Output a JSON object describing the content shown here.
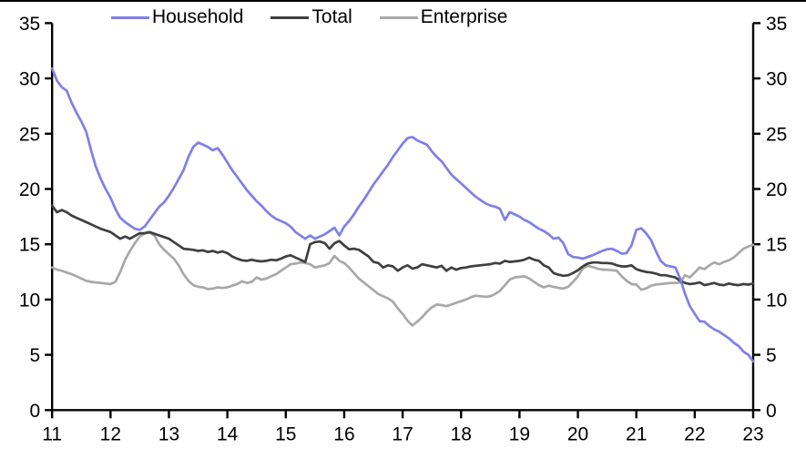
{
  "page": {
    "background": "#ffffff",
    "top_border_color": "#000000"
  },
  "legend": [
    {
      "label": "Household",
      "color": "#7f7fe8"
    },
    {
      "label": "Total",
      "color": "#3f3f3f"
    },
    {
      "label": "Enterprise",
      "color": "#a8a8a8"
    }
  ],
  "chart_data": {
    "type": "line",
    "title": "",
    "xlabel": "",
    "ylabel": "",
    "grid": false,
    "legend_position": "top",
    "x_axis": {
      "min": 11,
      "max": 23,
      "tick_labels": [
        "11",
        "12",
        "13",
        "14",
        "15",
        "16",
        "17",
        "18",
        "19",
        "20",
        "21",
        "22",
        "23"
      ]
    },
    "y_axis": {
      "min": 0,
      "max": 35,
      "tick_step": 5,
      "tick_labels": [
        "0",
        "5",
        "10",
        "15",
        "20",
        "25",
        "30",
        "35"
      ],
      "sides": "both"
    },
    "x_start_year": 11,
    "x_step_years": 0.08333,
    "series": [
      {
        "name": "Enterprise",
        "color": "#a8a8a8",
        "values": [
          12.9,
          12.7,
          12.6,
          12.45,
          12.3,
          12.1,
          11.9,
          11.7,
          11.6,
          11.55,
          11.5,
          11.45,
          11.4,
          11.6,
          12.5,
          13.6,
          14.4,
          15.1,
          15.7,
          16.0,
          16.05,
          15.8,
          15.0,
          14.5,
          14.1,
          13.7,
          13.1,
          12.3,
          11.7,
          11.3,
          11.15,
          11.1,
          10.95,
          11.0,
          11.1,
          11.05,
          11.1,
          11.25,
          11.4,
          11.65,
          11.5,
          11.6,
          12.0,
          11.8,
          11.9,
          12.1,
          12.3,
          12.6,
          12.9,
          13.2,
          13.25,
          13.35,
          13.3,
          13.2,
          12.9,
          13.0,
          13.1,
          13.3,
          13.95,
          13.5,
          13.3,
          12.9,
          12.4,
          11.9,
          11.55,
          11.2,
          10.85,
          10.5,
          10.3,
          10.1,
          9.8,
          9.2,
          8.7,
          8.1,
          7.65,
          8.0,
          8.4,
          8.9,
          9.3,
          9.55,
          9.5,
          9.4,
          9.55,
          9.7,
          9.85,
          10.0,
          10.2,
          10.35,
          10.3,
          10.25,
          10.3,
          10.5,
          10.8,
          11.3,
          11.8,
          12.0,
          12.05,
          12.1,
          11.9,
          11.6,
          11.3,
          11.1,
          11.25,
          11.15,
          11.05,
          11.0,
          11.15,
          11.6,
          12.1,
          12.8,
          13.05,
          12.95,
          12.8,
          12.7,
          12.7,
          12.65,
          12.6,
          12.1,
          11.7,
          11.4,
          11.35,
          10.9,
          11.0,
          11.25,
          11.35,
          11.4,
          11.45,
          11.5,
          11.5,
          11.55,
          12.2,
          12.0,
          12.45,
          12.9,
          12.75,
          13.1,
          13.35,
          13.2,
          13.4,
          13.55,
          13.8,
          14.2,
          14.6,
          14.8,
          14.95
        ]
      },
      {
        "name": "Total",
        "color": "#3f3f3f",
        "values": [
          18.5,
          17.9,
          18.1,
          17.9,
          17.6,
          17.4,
          17.2,
          17.0,
          16.8,
          16.6,
          16.4,
          16.25,
          16.1,
          15.8,
          15.5,
          15.7,
          15.5,
          15.75,
          16.0,
          16.0,
          16.1,
          15.95,
          15.8,
          15.65,
          15.5,
          15.2,
          14.9,
          14.6,
          14.55,
          14.5,
          14.4,
          14.45,
          14.3,
          14.4,
          14.25,
          14.35,
          14.2,
          13.9,
          13.7,
          13.55,
          13.5,
          13.6,
          13.5,
          13.45,
          13.5,
          13.6,
          13.55,
          13.7,
          13.9,
          14.0,
          13.8,
          13.6,
          13.4,
          15.0,
          15.2,
          15.25,
          15.1,
          14.6,
          15.1,
          15.3,
          14.9,
          14.55,
          14.6,
          14.5,
          14.2,
          13.9,
          13.4,
          13.3,
          12.9,
          13.1,
          13.0,
          12.6,
          12.9,
          13.1,
          12.8,
          12.9,
          13.2,
          13.1,
          13.0,
          12.9,
          13.05,
          12.6,
          12.9,
          12.7,
          12.85,
          12.9,
          13.0,
          13.05,
          13.1,
          13.15,
          13.2,
          13.3,
          13.25,
          13.5,
          13.4,
          13.45,
          13.5,
          13.6,
          13.8,
          13.6,
          13.5,
          13.1,
          12.9,
          12.4,
          12.25,
          12.15,
          12.2,
          12.4,
          12.65,
          13.0,
          13.25,
          13.35,
          13.35,
          13.3,
          13.3,
          13.25,
          13.1,
          13.0,
          13.0,
          13.1,
          12.75,
          12.6,
          12.5,
          12.45,
          12.35,
          12.2,
          12.2,
          12.1,
          12.0,
          11.7,
          11.5,
          11.4,
          11.45,
          11.55,
          11.3,
          11.4,
          11.5,
          11.35,
          11.3,
          11.45,
          11.35,
          11.3,
          11.4,
          11.35,
          11.45
        ]
      },
      {
        "name": "Household",
        "color": "#7f7fe8",
        "values": [
          30.9,
          29.8,
          29.2,
          28.9,
          27.8,
          26.9,
          26.1,
          25.2,
          23.5,
          22.0,
          20.9,
          20.0,
          19.2,
          18.2,
          17.4,
          17.0,
          16.7,
          16.4,
          16.3,
          16.6,
          17.2,
          17.8,
          18.4,
          18.8,
          19.4,
          20.1,
          20.9,
          21.7,
          22.9,
          23.8,
          24.2,
          24.0,
          23.8,
          23.5,
          23.7,
          23.1,
          22.4,
          21.7,
          21.1,
          20.5,
          19.9,
          19.4,
          18.9,
          18.5,
          18.0,
          17.6,
          17.3,
          17.1,
          16.9,
          16.6,
          16.1,
          15.8,
          15.5,
          15.8,
          15.5,
          15.7,
          15.9,
          16.2,
          16.5,
          15.8,
          16.6,
          17.1,
          17.7,
          18.4,
          19.0,
          19.7,
          20.4,
          21.0,
          21.6,
          22.2,
          22.9,
          23.5,
          24.1,
          24.6,
          24.7,
          24.4,
          24.2,
          24.0,
          23.4,
          22.9,
          22.5,
          21.9,
          21.3,
          20.9,
          20.5,
          20.1,
          19.7,
          19.3,
          19.0,
          18.7,
          18.5,
          18.4,
          18.2,
          17.2,
          17.9,
          17.7,
          17.5,
          17.2,
          17.0,
          16.7,
          16.4,
          16.2,
          15.9,
          15.5,
          15.6,
          15.1,
          14.1,
          13.85,
          13.8,
          13.7,
          13.85,
          14.0,
          14.2,
          14.4,
          14.55,
          14.6,
          14.4,
          14.15,
          14.2,
          14.9,
          16.3,
          16.45,
          16.0,
          15.4,
          14.4,
          13.5,
          13.1,
          13.0,
          12.9,
          11.9,
          10.5,
          9.4,
          8.7,
          8.05,
          8.0,
          7.6,
          7.3,
          7.1,
          6.8,
          6.5,
          6.1,
          5.8,
          5.3,
          5.0,
          4.4
        ]
      }
    ]
  }
}
